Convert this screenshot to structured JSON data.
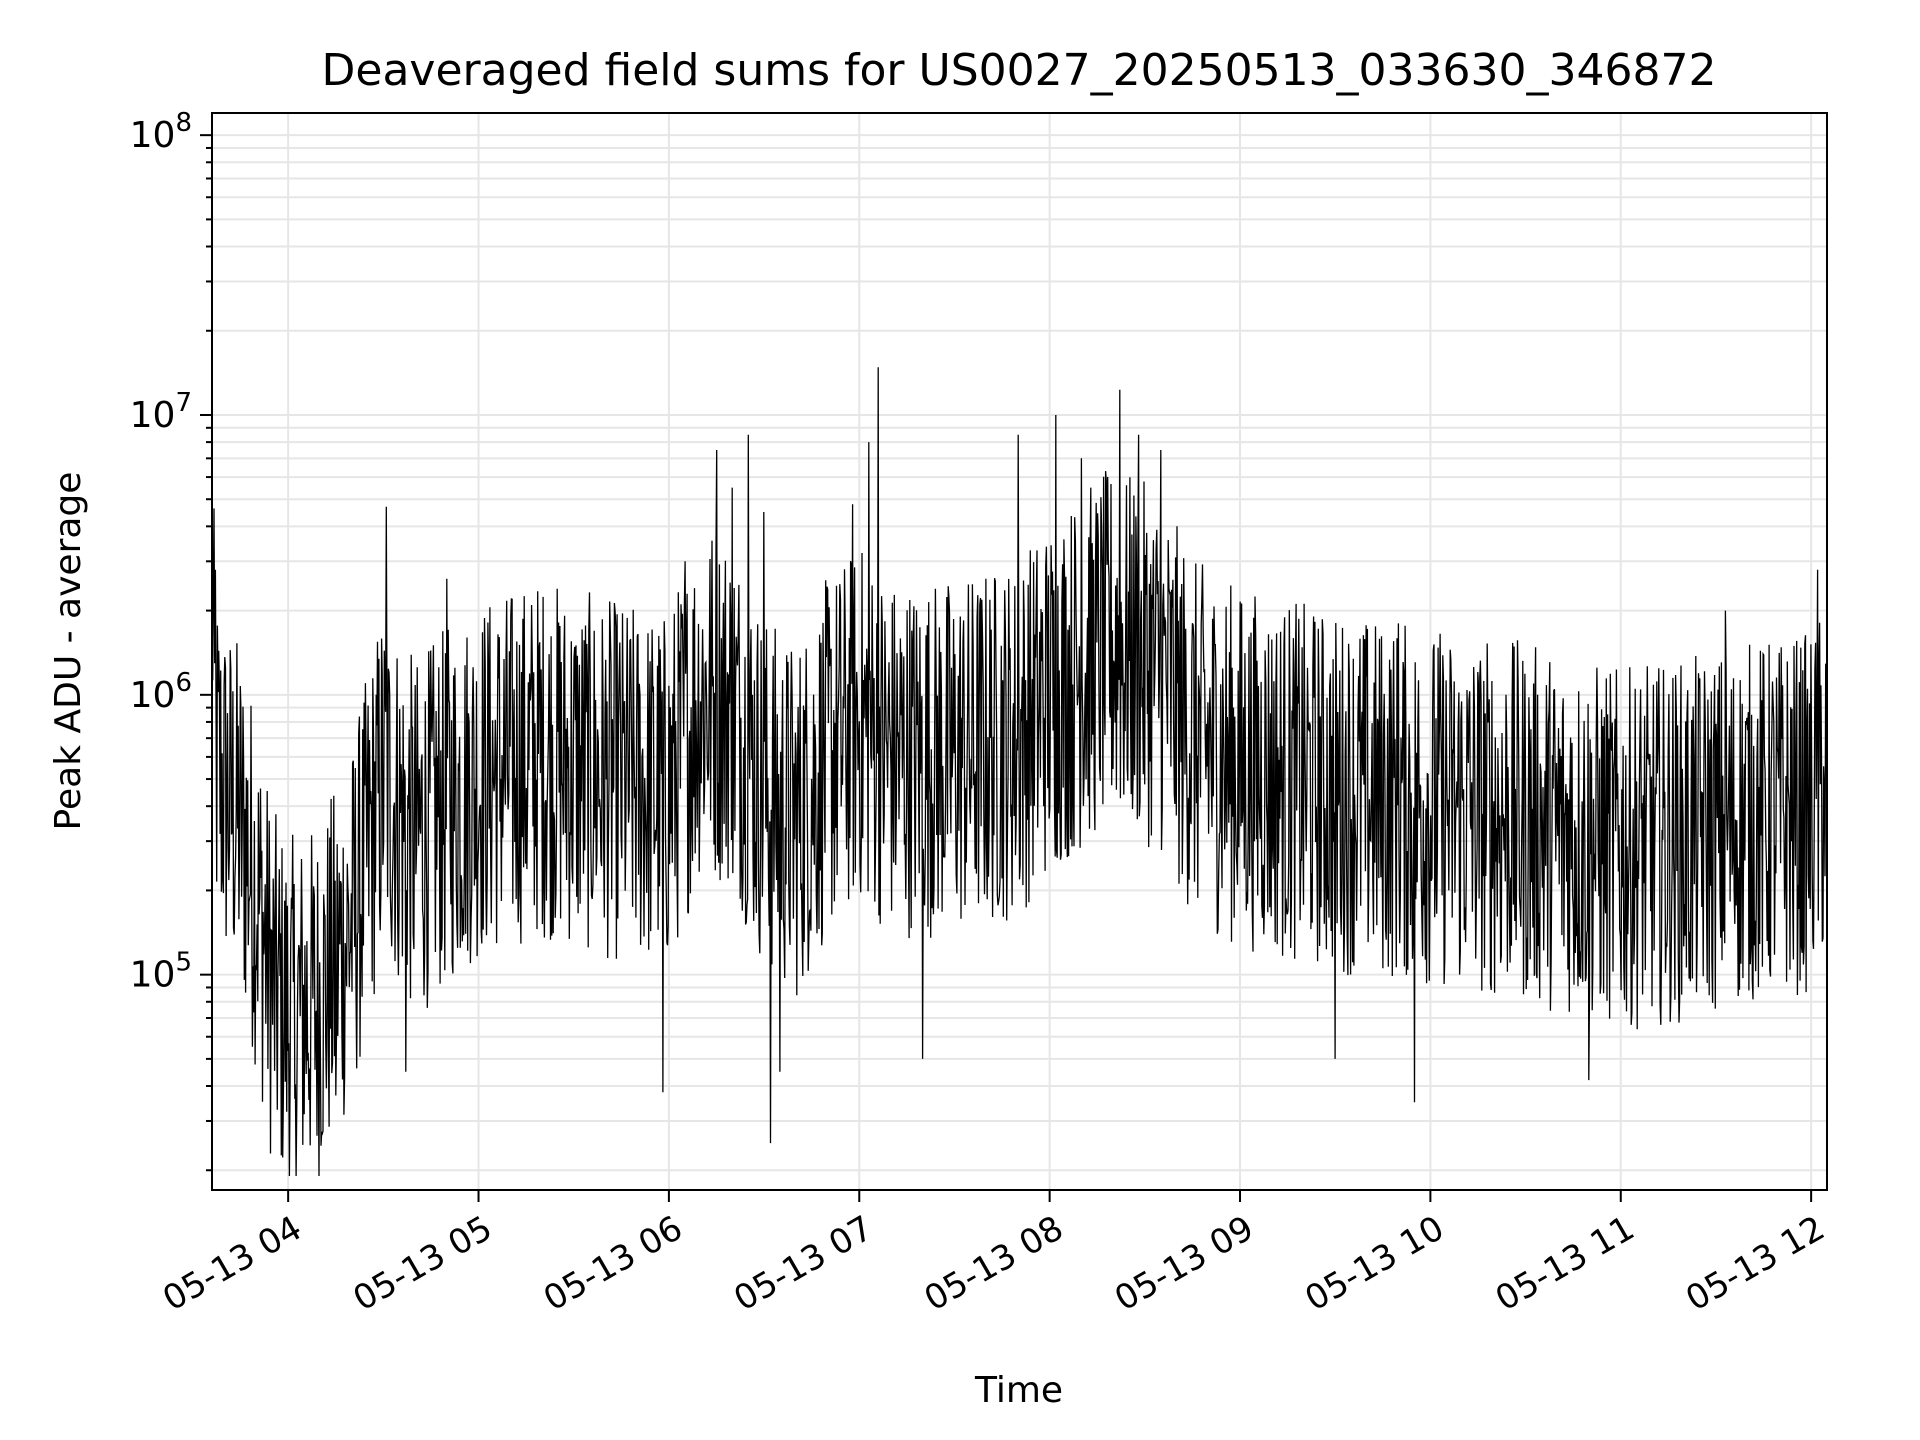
{
  "chart_data": {
    "type": "line",
    "title": "Deaveraged field sums for US0027_20250513_033630_346872",
    "xlabel": "Time",
    "ylabel": "Peak ADU - average",
    "yscale": "log",
    "ylim": [
      17000,
      120000000
    ],
    "xlim": [
      "2025-05-13 03:36",
      "2025-05-13 12:05"
    ],
    "grid": true,
    "line_color": "#000000",
    "xticks": [
      {
        "value": "2025-05-13 04:00",
        "label": "05-13 04"
      },
      {
        "value": "2025-05-13 05:00",
        "label": "05-13 05"
      },
      {
        "value": "2025-05-13 06:00",
        "label": "05-13 06"
      },
      {
        "value": "2025-05-13 07:00",
        "label": "05-13 07"
      },
      {
        "value": "2025-05-13 08:00",
        "label": "05-13 08"
      },
      {
        "value": "2025-05-13 09:00",
        "label": "05-13 09"
      },
      {
        "value": "2025-05-13 10:00",
        "label": "05-13 10"
      },
      {
        "value": "2025-05-13 11:00",
        "label": "05-13 11"
      },
      {
        "value": "2025-05-13 12:00",
        "label": "05-13 12"
      }
    ],
    "yticks": [
      {
        "value": 100000,
        "base": "10",
        "exp": "5"
      },
      {
        "value": 1000000,
        "base": "10",
        "exp": "6"
      },
      {
        "value": 10000000,
        "base": "10",
        "exp": "7"
      },
      {
        "value": 100000000,
        "base": "10",
        "exp": "8"
      }
    ],
    "series": [
      {
        "values_note": "approximate sampled envelope of the noisy trace",
        "points": [
          [
            "2025-05-13 03:36",
            2800000
          ],
          [
            "2025-05-13 03:37",
            600000
          ],
          [
            "2025-05-13 03:40",
            450000
          ],
          [
            "2025-05-13 03:45",
            350000
          ],
          [
            "2025-05-13 03:50",
            200000
          ],
          [
            "2025-05-13 03:55",
            90000
          ],
          [
            "2025-05-13 04:00",
            70000
          ],
          [
            "2025-05-13 04:10",
            80000
          ],
          [
            "2025-05-13 04:20",
            150000
          ],
          [
            "2025-05-13 04:30",
            500000
          ],
          [
            "2025-05-13 04:40",
            300000
          ],
          [
            "2025-05-13 04:50",
            400000
          ],
          [
            "2025-05-13 05:00",
            500000
          ],
          [
            "2025-05-13 05:20",
            600000
          ],
          [
            "2025-05-13 05:40",
            500000
          ],
          [
            "2025-05-13 06:00",
            450000
          ],
          [
            "2025-05-13 06:10",
            1000000
          ],
          [
            "2025-05-13 06:20",
            900000
          ],
          [
            "2025-05-13 06:30",
            450000
          ],
          [
            "2025-05-13 06:40",
            350000
          ],
          [
            "2025-05-13 06:50",
            600000
          ],
          [
            "2025-05-13 07:00",
            800000
          ],
          [
            "2025-05-13 07:10",
            600000
          ],
          [
            "2025-05-13 07:30",
            600000
          ],
          [
            "2025-05-13 07:50",
            700000
          ],
          [
            "2025-05-13 08:00",
            1000000
          ],
          [
            "2025-05-13 08:20",
            1500000
          ],
          [
            "2025-05-13 08:35",
            1200000
          ],
          [
            "2025-05-13 08:45",
            700000
          ],
          [
            "2025-05-13 09:00",
            550000
          ],
          [
            "2025-05-13 09:30",
            450000
          ],
          [
            "2025-05-13 10:00",
            400000
          ],
          [
            "2025-05-13 10:30",
            350000
          ],
          [
            "2025-05-13 11:00",
            280000
          ],
          [
            "2025-05-13 11:20",
            300000
          ],
          [
            "2025-05-13 11:40",
            350000
          ],
          [
            "2025-05-13 12:00",
            380000
          ],
          [
            "2025-05-13 12:05",
            500000
          ]
        ],
        "peaks": [
          [
            "2025-05-13 03:37",
            2800000
          ],
          [
            "2025-05-13 04:31",
            4700000
          ],
          [
            "2025-05-13 04:50",
            2600000
          ],
          [
            "2025-05-13 06:05",
            3000000
          ],
          [
            "2025-05-13 06:15",
            7500000
          ],
          [
            "2025-05-13 06:20",
            5500000
          ],
          [
            "2025-05-13 06:25",
            8500000
          ],
          [
            "2025-05-13 06:30",
            4500000
          ],
          [
            "2025-05-13 06:58",
            4800000
          ],
          [
            "2025-05-13 07:03",
            8000000
          ],
          [
            "2025-05-13 07:06",
            14800000
          ],
          [
            "2025-05-13 07:50",
            8500000
          ],
          [
            "2025-05-13 08:02",
            10000000
          ],
          [
            "2025-05-13 08:10",
            7000000
          ],
          [
            "2025-05-13 08:22",
            12300000
          ],
          [
            "2025-05-13 08:28",
            8500000
          ],
          [
            "2025-05-13 08:35",
            7500000
          ],
          [
            "2025-05-13 09:50",
            1800000
          ],
          [
            "2025-05-13 11:33",
            2000000
          ],
          [
            "2025-05-13 12:02",
            2800000
          ]
        ],
        "troughs": [
          [
            "2025-05-13 04:02",
            36000
          ],
          [
            "2025-05-13 04:15",
            37000
          ],
          [
            "2025-05-13 04:37",
            45000
          ],
          [
            "2025-05-13 05:58",
            38000
          ],
          [
            "2025-05-13 06:32",
            25000
          ],
          [
            "2025-05-13 06:35",
            45000
          ],
          [
            "2025-05-13 07:20",
            50000
          ],
          [
            "2025-05-13 09:30",
            50000
          ],
          [
            "2025-05-13 09:55",
            35000
          ],
          [
            "2025-05-13 10:50",
            42000
          ]
        ]
      }
    ]
  }
}
